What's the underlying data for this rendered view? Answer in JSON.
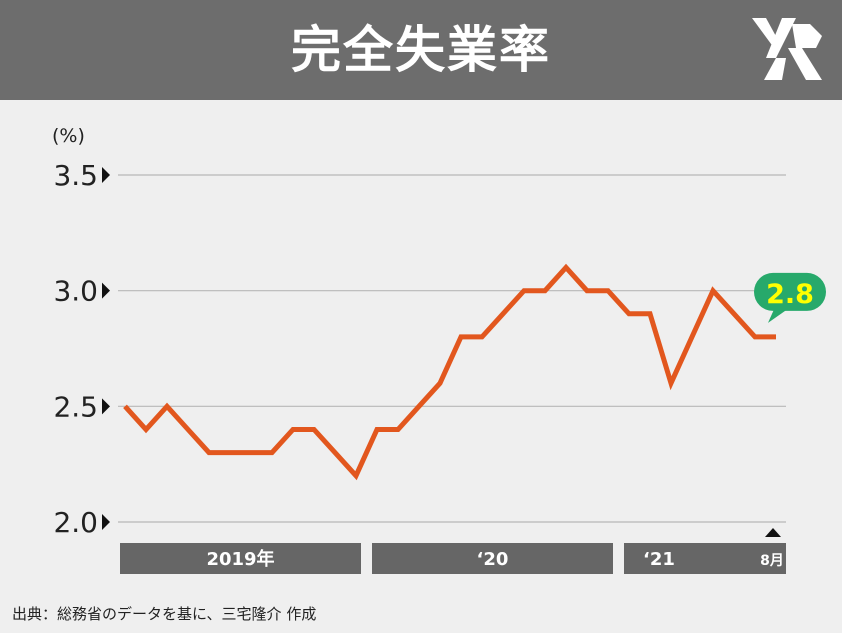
{
  "header": {
    "title": "完全失業率"
  },
  "chart_data": {
    "type": "line",
    "unit_label": "(%)",
    "y_ticks": [
      "3.5",
      "3.0",
      "2.5",
      "2.0"
    ],
    "ylim": [
      2.0,
      3.5
    ],
    "grid": true,
    "series": [
      {
        "color": "#e2571e",
        "values": [
          2.5,
          2.4,
          2.5,
          2.4,
          2.3,
          2.3,
          2.3,
          2.3,
          2.4,
          2.4,
          2.3,
          2.2,
          2.4,
          2.4,
          2.5,
          2.6,
          2.8,
          2.8,
          2.9,
          3.0,
          3.0,
          3.1,
          3.0,
          3.0,
          2.9,
          2.9,
          2.6,
          2.8,
          3.0,
          2.9,
          2.8,
          2.8
        ]
      }
    ],
    "year_bands": [
      {
        "label": "2019年",
        "months": 12
      },
      {
        "label": "‘20",
        "months": 12
      },
      {
        "label": "‘21",
        "months": 8
      }
    ],
    "last_month_label": "8月",
    "callout": {
      "value": "2.8",
      "bg_color": "#27a96b",
      "text_color": "#ffff00"
    }
  },
  "footer": {
    "source": "出典：総務省のデータを基に、三宅隆介 作成"
  }
}
